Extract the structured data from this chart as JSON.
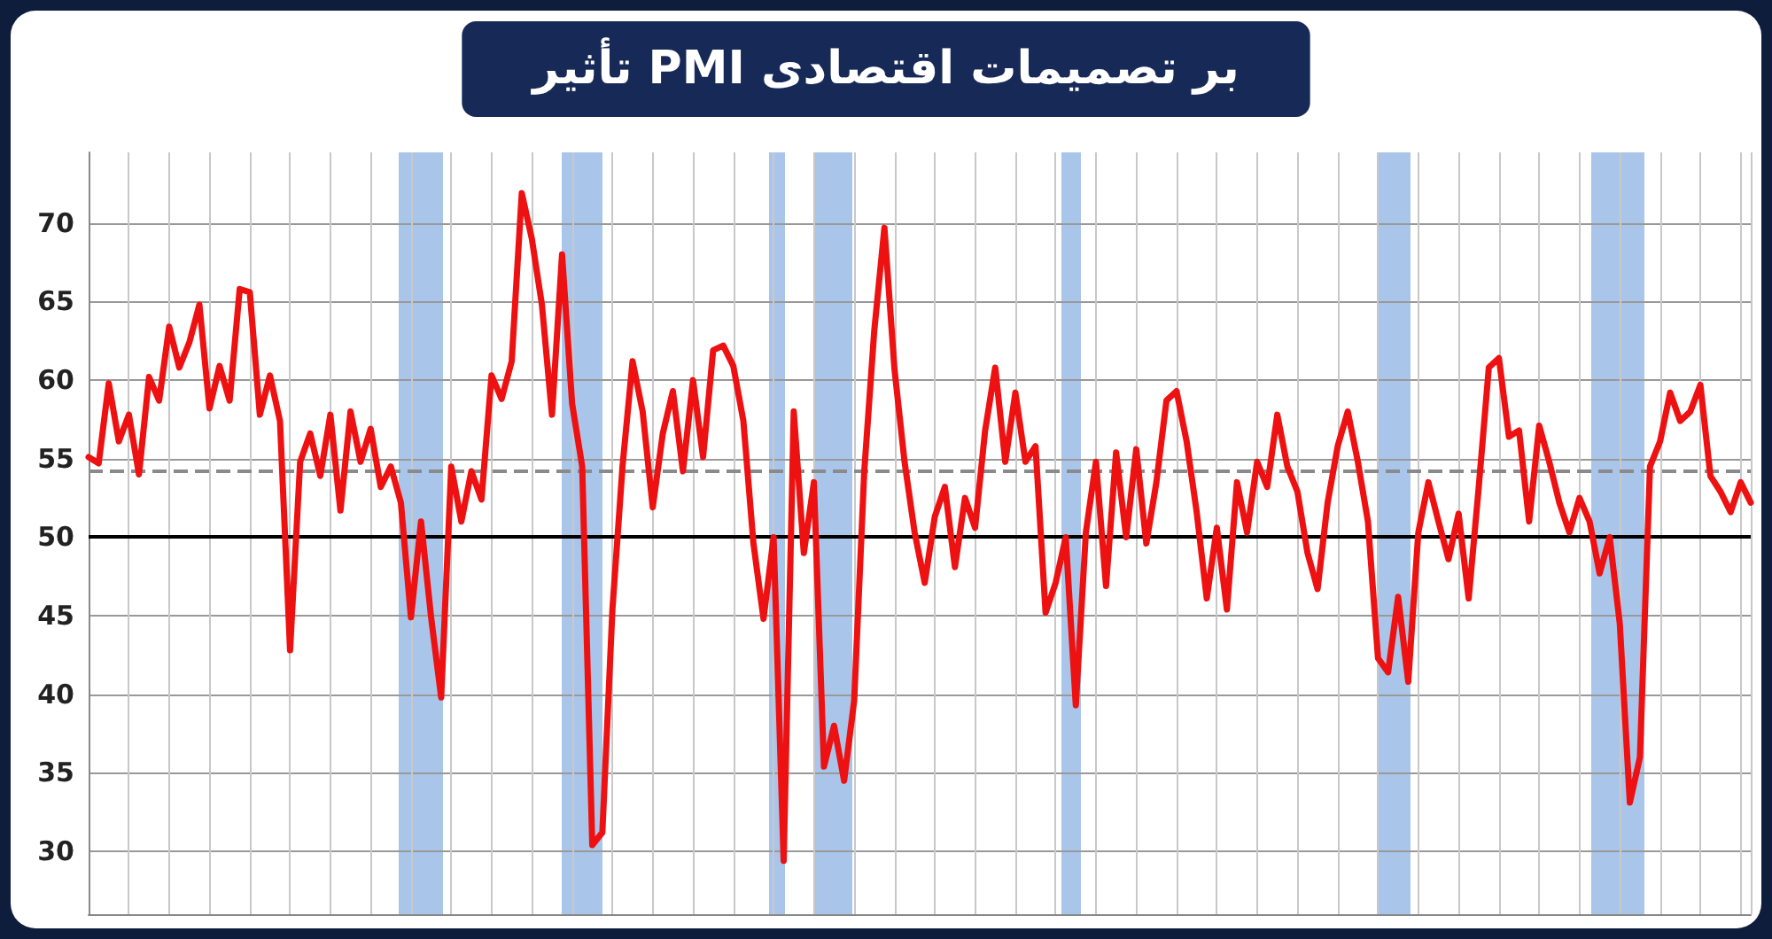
{
  "chart_data": {
    "type": "line",
    "title": "تأثیر PMI بر تصمیمات اقتصادی",
    "categories": [
      null,
      null,
      null,
      null,
      null,
      null,
      null,
      null,
      null,
      null,
      null,
      null,
      null,
      null,
      null,
      null,
      null,
      null,
      null,
      null,
      null,
      null,
      null,
      null,
      null,
      null,
      null,
      null,
      null,
      null,
      null,
      null,
      null,
      null,
      null,
      null,
      null,
      null,
      null,
      null,
      null,
      null,
      null,
      null,
      null,
      null,
      null,
      null,
      null,
      null,
      null,
      null,
      null,
      null,
      null,
      null,
      null,
      null,
      null,
      null,
      null,
      null,
      null,
      null,
      null,
      null,
      null,
      null,
      null,
      null,
      null,
      null,
      null,
      null,
      null,
      null,
      null,
      null,
      null,
      null,
      null,
      null,
      null,
      null,
      null,
      null,
      null,
      null,
      null,
      null,
      null,
      null,
      null,
      null,
      null,
      null,
      null,
      null,
      null,
      null,
      null,
      null,
      null,
      null,
      null,
      null,
      null,
      null,
      null,
      null,
      null,
      null,
      null,
      null,
      null,
      null,
      null,
      null,
      null,
      null,
      null,
      null,
      null,
      null,
      null,
      null,
      null,
      null,
      null,
      null,
      null,
      null,
      null,
      null,
      null,
      null,
      null,
      null,
      null,
      null,
      null,
      null,
      null,
      null,
      null,
      null,
      null,
      null,
      null,
      null,
      null,
      null,
      null,
      null,
      null,
      null,
      null,
      null,
      null,
      null,
      null,
      null,
      null,
      null,
      null,
      null
    ],
    "ylim": [
      26,
      74.5
    ],
    "yticks": [
      30,
      35,
      40,
      45,
      50,
      55,
      60,
      65,
      70
    ],
    "grid": true,
    "marker": "none",
    "line_style": "solid",
    "ref_lines": [
      {
        "axis": "y",
        "value": 50,
        "color": "#000000",
        "line_style": "solid"
      },
      {
        "axis": "y",
        "value": 54.2,
        "color": "#8a8a8a",
        "line_style": "dashed"
      }
    ],
    "series": [
      {
        "color": "#ee1111",
        "values": [
          55.1,
          54.7,
          59.8,
          56.1,
          57.8,
          54.0,
          60.2,
          58.7,
          63.4,
          60.8,
          62.4,
          64.8,
          58.2,
          60.9,
          58.7,
          65.8,
          65.6,
          57.8,
          60.3,
          57.4,
          42.8,
          54.8,
          56.6,
          53.9,
          57.8,
          51.7,
          58.0,
          54.8,
          56.9,
          53.2,
          54.5,
          52.2,
          44.9,
          51.0,
          44.9,
          39.8,
          54.5,
          51.0,
          54.2,
          52.4,
          60.3,
          58.8,
          61.2,
          71.9,
          69.0,
          64.8,
          57.8,
          68.0,
          58.5,
          54.5,
          30.4,
          31.2,
          45.4,
          54.5,
          61.2,
          58.0,
          51.9,
          56.6,
          59.3,
          54.2,
          60.0,
          55.1,
          61.9,
          62.2,
          60.9,
          57.4,
          49.6,
          44.8,
          50.0,
          29.4,
          58.0,
          49.0,
          53.5,
          35.4,
          38.0,
          34.5,
          39.6,
          54.2,
          63.2,
          69.7,
          60.7,
          54.8,
          50.3,
          47.1,
          51.3,
          53.2,
          48.1,
          52.5,
          50.6,
          56.8,
          60.8,
          54.8,
          59.2,
          54.8,
          55.8,
          45.2,
          47.1,
          50.0,
          39.3,
          50.3,
          54.8,
          46.9,
          55.4,
          50.0,
          55.6,
          49.6,
          53.5,
          58.7,
          59.3,
          56.1,
          51.6,
          46.1,
          50.6,
          45.4,
          53.5,
          50.3,
          54.8,
          53.2,
          57.8,
          54.5,
          52.9,
          49.0,
          46.7,
          52.2,
          55.8,
          58.0,
          54.8,
          51.0,
          42.3,
          41.4,
          46.2,
          40.8,
          50.3,
          53.5,
          51.0,
          48.6,
          51.5,
          46.1,
          53.2,
          60.8,
          61.4,
          56.4,
          56.8,
          51.0,
          57.1,
          54.8,
          52.2,
          50.3,
          52.5,
          51.0,
          47.7,
          50.0,
          44.5,
          33.1,
          36.0,
          54.5,
          56.1,
          59.2,
          57.4,
          58.0,
          59.7,
          53.9,
          52.9,
          51.6,
          53.5,
          52.2
        ]
      }
    ]
  }
}
